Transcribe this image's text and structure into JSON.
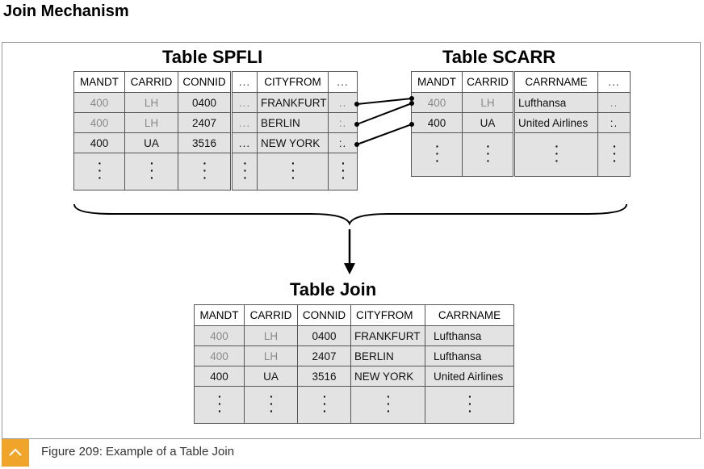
{
  "page_title": "Join Mechanism",
  "caption": "Figure 209: Example of a Table Join",
  "icons": {
    "caption_toggle": "chevron-up-icon"
  },
  "colors": {
    "accent": "#f0a52a",
    "cell_fill": "#e3e3e3",
    "border": "#555555"
  },
  "spfli": {
    "title": "Table SPFLI",
    "columns": [
      "MANDT",
      "CARRID",
      "CONNID",
      "...",
      "CITYFROM",
      "..."
    ],
    "rows": [
      {
        "mandt": "400",
        "carrid": "LH",
        "connid": "0400",
        "gap": "...",
        "cityfrom": "FRANKFURT",
        "more": ".."
      },
      {
        "mandt": "400",
        "carrid": "LH",
        "connid": "2407",
        "gap": "...",
        "cityfrom": "BERLIN",
        "more": ":."
      },
      {
        "mandt": "400",
        "carrid": "UA",
        "connid": "3516",
        "gap": "...",
        "cityfrom": "NEW YORK",
        "more": ":."
      }
    ]
  },
  "scarr": {
    "title": "Table SCARR",
    "columns": [
      "MANDT",
      "CARRID",
      "CARRNAME",
      "..."
    ],
    "rows": [
      {
        "mandt": "400",
        "carrid": "LH",
        "carrname": "Lufthansa",
        "more": ".."
      },
      {
        "mandt": "400",
        "carrid": "UA",
        "carrname": "United Airlines",
        "more": ":."
      }
    ]
  },
  "join": {
    "title": "Table Join",
    "columns": [
      "MANDT",
      "CARRID",
      "CONNID",
      "CITYFROM",
      "CARRNAME"
    ],
    "rows": [
      {
        "mandt": "400",
        "carrid": "LH",
        "connid": "0400",
        "cityfrom": "FRANKFURT",
        "carrname": "Lufthansa"
      },
      {
        "mandt": "400",
        "carrid": "LH",
        "connid": "2407",
        "cityfrom": "BERLIN",
        "carrname": "Lufthansa"
      },
      {
        "mandt": "400",
        "carrid": "UA",
        "connid": "3516",
        "cityfrom": "NEW YORK",
        "carrname": "United Airlines"
      }
    ]
  }
}
